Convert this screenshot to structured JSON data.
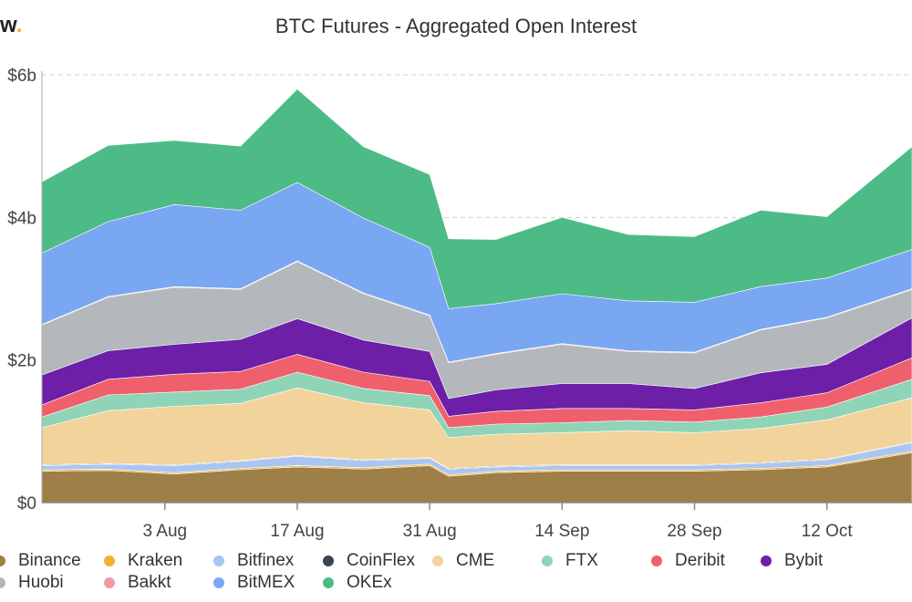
{
  "brand": {
    "text": "w",
    "dot": "."
  },
  "chart_data": {
    "type": "area",
    "stacked": true,
    "title": "BTC Futures - Aggregated Open Interest",
    "x_start": "2020-07-21",
    "x_end": "2020-10-21",
    "x_ticks": [
      {
        "date": "2020-08-03",
        "label": "3 Aug"
      },
      {
        "date": "2020-08-17",
        "label": "17 Aug"
      },
      {
        "date": "2020-08-31",
        "label": "31 Aug"
      },
      {
        "date": "2020-09-14",
        "label": "14 Sep"
      },
      {
        "date": "2020-09-28",
        "label": "28 Sep"
      },
      {
        "date": "2020-10-12",
        "label": "12 Oct"
      }
    ],
    "y_ticks": [
      {
        "value": 0,
        "label": "$0"
      },
      {
        "value": 2,
        "label": "$2b"
      },
      {
        "value": 4,
        "label": "$4b"
      },
      {
        "value": 6,
        "label": "$6b"
      }
    ],
    "ylim": [
      0,
      6
    ],
    "y_unit": "billion USD",
    "grid": true,
    "legend_position": "bottom",
    "dates": [
      "2020-07-21",
      "2020-07-28",
      "2020-08-04",
      "2020-08-11",
      "2020-08-17",
      "2020-08-24",
      "2020-08-31",
      "2020-09-02",
      "2020-09-07",
      "2020-09-14",
      "2020-09-21",
      "2020-09-28",
      "2020-10-05",
      "2020-10-12",
      "2020-10-21"
    ],
    "series": [
      {
        "name": "Binance",
        "color": "#9e7f47",
        "values": [
          0.44,
          0.45,
          0.4,
          0.46,
          0.5,
          0.47,
          0.52,
          0.37,
          0.42,
          0.44,
          0.44,
          0.44,
          0.46,
          0.5,
          0.7
        ]
      },
      {
        "name": "Kraken",
        "color": "#f1b233",
        "values": [
          0.02,
          0.02,
          0.02,
          0.02,
          0.02,
          0.02,
          0.02,
          0.02,
          0.02,
          0.02,
          0.02,
          0.02,
          0.02,
          0.02,
          0.02
        ]
      },
      {
        "name": "Bitfinex",
        "color": "#a9c6f2",
        "values": [
          0.06,
          0.07,
          0.1,
          0.1,
          0.13,
          0.1,
          0.08,
          0.08,
          0.06,
          0.06,
          0.06,
          0.06,
          0.07,
          0.08,
          0.12
        ]
      },
      {
        "name": "CoinFlex",
        "color": "#3a4550",
        "values": [
          0.01,
          0.01,
          0.01,
          0.01,
          0.01,
          0.01,
          0.01,
          0.01,
          0.01,
          0.01,
          0.01,
          0.01,
          0.01,
          0.01,
          0.01
        ]
      },
      {
        "name": "CME",
        "color": "#f2d39b",
        "values": [
          0.52,
          0.74,
          0.82,
          0.8,
          0.95,
          0.8,
          0.67,
          0.43,
          0.45,
          0.45,
          0.48,
          0.45,
          0.48,
          0.55,
          0.62
        ]
      },
      {
        "name": "FTX",
        "color": "#8fd4b6",
        "values": [
          0.15,
          0.22,
          0.2,
          0.2,
          0.22,
          0.2,
          0.2,
          0.14,
          0.14,
          0.14,
          0.14,
          0.15,
          0.16,
          0.18,
          0.26
        ]
      },
      {
        "name": "Deribit",
        "color": "#f0606c",
        "values": [
          0.17,
          0.22,
          0.25,
          0.25,
          0.25,
          0.23,
          0.2,
          0.16,
          0.18,
          0.2,
          0.17,
          0.17,
          0.2,
          0.2,
          0.3
        ]
      },
      {
        "name": "Bybit",
        "color": "#6d1fa8",
        "values": [
          0.42,
          0.4,
          0.42,
          0.45,
          0.5,
          0.45,
          0.42,
          0.25,
          0.3,
          0.35,
          0.35,
          0.3,
          0.42,
          0.4,
          0.56
        ]
      },
      {
        "name": "Huobi",
        "color": "#b4b8bd",
        "values": [
          0.7,
          0.75,
          0.8,
          0.7,
          0.8,
          0.65,
          0.5,
          0.5,
          0.5,
          0.55,
          0.45,
          0.5,
          0.6,
          0.65,
          0.4
        ]
      },
      {
        "name": "Bakkt",
        "color": "#f49aa0",
        "values": [
          0.01,
          0.01,
          0.01,
          0.01,
          0.01,
          0.01,
          0.01,
          0.01,
          0.01,
          0.01,
          0.01,
          0.01,
          0.01,
          0.01,
          0.01
        ]
      },
      {
        "name": "BitMEX",
        "color": "#7aa7f2",
        "values": [
          1.0,
          1.05,
          1.15,
          1.1,
          1.1,
          1.05,
          0.95,
          0.75,
          0.7,
          0.7,
          0.7,
          0.7,
          0.6,
          0.55,
          0.55
        ]
      },
      {
        "name": "OKEx",
        "color": "#4dbb86",
        "values": [
          1.0,
          1.07,
          0.9,
          0.9,
          1.31,
          1.0,
          1.02,
          0.98,
          0.9,
          1.07,
          0.93,
          0.92,
          1.07,
          0.86,
          1.44
        ]
      }
    ]
  },
  "legend": [
    [
      "Binance",
      "Kraken",
      "Bitfinex",
      "CoinFlex",
      "CME",
      "FTX",
      "Deribit",
      "Bybit"
    ],
    [
      "Huobi",
      "Bakkt",
      "BitMEX",
      "OKEx"
    ]
  ]
}
